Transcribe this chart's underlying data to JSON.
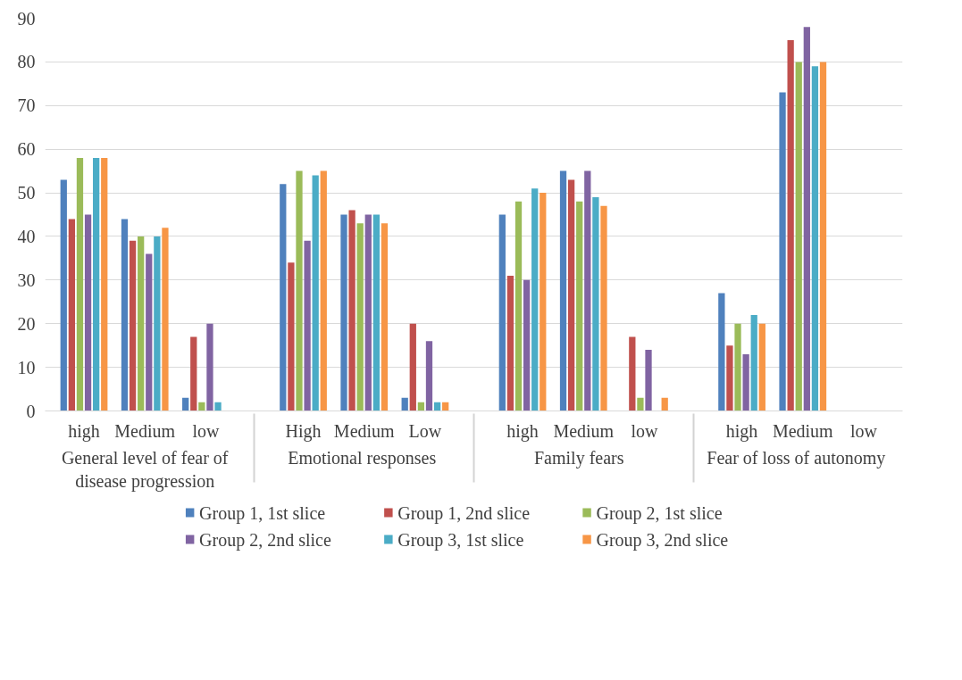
{
  "chart_data": {
    "type": "bar",
    "categories": [
      "high",
      "Medium",
      "low",
      "High",
      "Medium",
      "Low",
      "high",
      "Medium",
      "low",
      "high",
      "Medium",
      "low"
    ],
    "annotations": [
      "General level of fear of disease progression",
      "Emotional responses",
      "Family fears",
      "Fear of loss of autonomy"
    ],
    "series": [
      {
        "name": "Group 1, 1st slice",
        "color": "#4f81bd",
        "values": [
          53,
          44,
          3,
          52,
          45,
          3,
          45,
          55,
          0,
          27,
          73,
          0
        ]
      },
      {
        "name": "Group 1, 2nd slice",
        "color": "#c0504d",
        "values": [
          44,
          39,
          17,
          34,
          46,
          20,
          31,
          53,
          17,
          15,
          85,
          0
        ]
      },
      {
        "name": "Group 2, 1st slice",
        "color": "#9bbb59",
        "values": [
          58,
          40,
          2,
          55,
          43,
          2,
          48,
          48,
          3,
          20,
          80,
          0
        ]
      },
      {
        "name": "Group 2, 2nd slice",
        "color": "#8064a2",
        "values": [
          45,
          36,
          20,
          39,
          45,
          16,
          30,
          55,
          14,
          13,
          88,
          0
        ]
      },
      {
        "name": "Group 3, 1st slice",
        "color": "#4bacc6",
        "values": [
          58,
          40,
          2,
          54,
          45,
          2,
          51,
          49,
          0,
          22,
          79,
          0
        ]
      },
      {
        "name": "Group 3, 2nd slice",
        "color": "#f79646",
        "values": [
          58,
          42,
          0,
          55,
          43,
          2,
          50,
          47,
          3,
          20,
          80,
          0
        ]
      }
    ],
    "ylim": [
      0,
      90
    ],
    "yticks": [
      0,
      10,
      20,
      30,
      40,
      50,
      60,
      70,
      80,
      90
    ],
    "grid": "y",
    "legend": "bottom"
  }
}
